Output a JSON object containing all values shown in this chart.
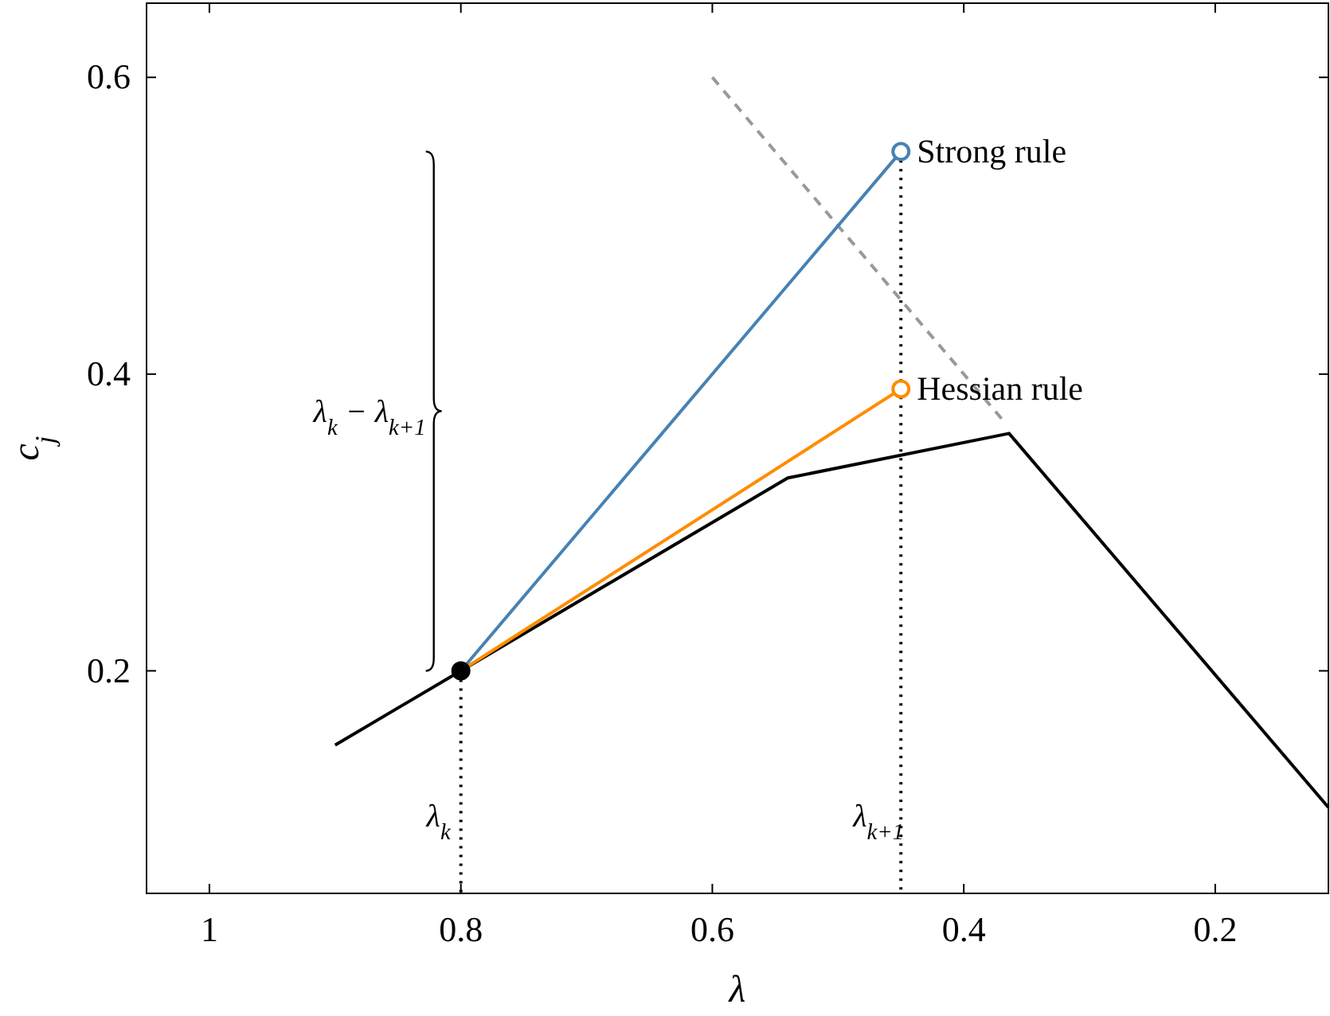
{
  "chart_data": {
    "type": "line",
    "xlabel": "λ",
    "ylabel": "c$_{j}$",
    "xlim": [
      1.05,
      0.11
    ],
    "ylim": [
      0.05,
      0.65
    ],
    "xticks": [
      1,
      0.8,
      0.6,
      0.4,
      0.2
    ],
    "yticks": [
      0.2,
      0.4,
      0.6
    ],
    "grid": false,
    "series": [
      {
        "color": "#999999",
        "line_style": "dashed",
        "x": [
          0.6,
          0.37
        ],
        "values": [
          0.6,
          0.37
        ]
      },
      {
        "color": "#000000",
        "line_style": "dotted",
        "x": [
          0.8,
          0.8
        ],
        "values": [
          0.2,
          0.05
        ]
      },
      {
        "color": "#000000",
        "line_style": "dotted",
        "x": [
          0.45,
          0.45
        ],
        "values": [
          0.55,
          0.05
        ]
      },
      {
        "color": "#000000",
        "line_style": "solid",
        "x": [
          0.9,
          0.8,
          0.54,
          0.364,
          0.11
        ],
        "values": [
          0.15,
          0.2,
          0.33,
          0.36,
          0.108
        ]
      },
      {
        "color": "#4682b4",
        "line_style": "solid",
        "x": [
          0.8,
          0.45
        ],
        "values": [
          0.2,
          0.55
        ]
      },
      {
        "color": "#ff8c00",
        "line_style": "solid",
        "x": [
          0.8,
          0.45
        ],
        "values": [
          0.2,
          0.39
        ]
      },
      {
        "type": "scatter",
        "name": "Strong rule",
        "color": "#4682b4",
        "marker": "circle",
        "x": [
          0.45
        ],
        "values": [
          0.55
        ]
      },
      {
        "type": "scatter",
        "name": "Hessian rule",
        "color": "#ff8c00",
        "marker": "circle",
        "x": [
          0.45
        ],
        "values": [
          0.39
        ]
      },
      {
        "type": "scatter",
        "color": "#000000",
        "marker": "circle",
        "x": [
          0.8
        ],
        "values": [
          0.2
        ]
      }
    ],
    "annotations": [
      "λ$_{k}$ − λ$_{k+1}$",
      "λ$_{k}$",
      "λ$_{k+1}$"
    ]
  }
}
